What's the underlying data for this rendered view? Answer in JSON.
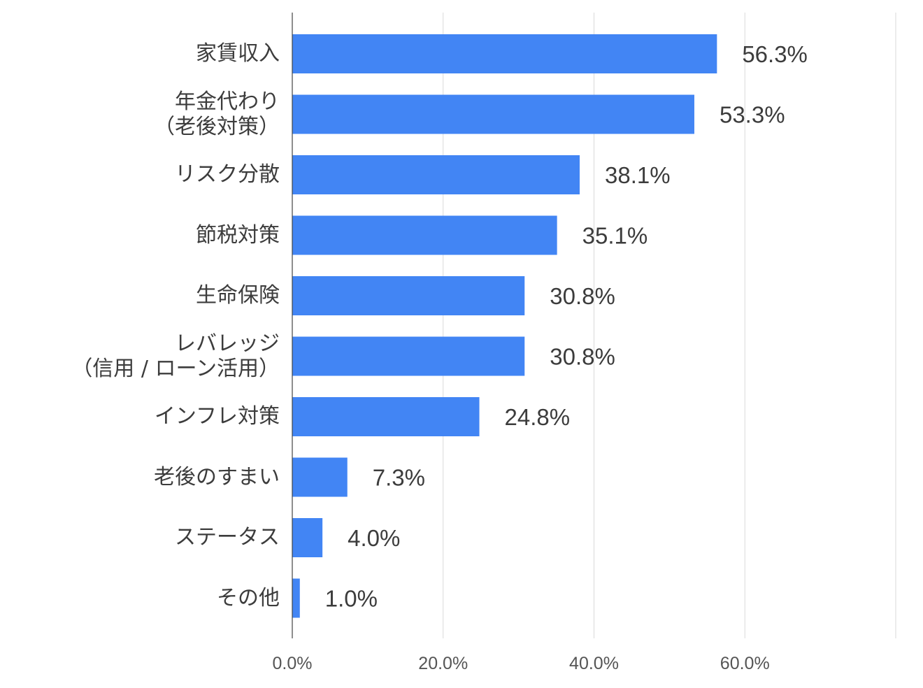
{
  "chart_data": {
    "type": "bar",
    "orientation": "horizontal",
    "categories": [
      "家賃収入",
      "年金代わり\n（老後対策）",
      "リスク分散",
      "節税対策",
      "生命保険",
      "レバレッジ\n（信用 / ローン活用）",
      "インフレ対策",
      "老後のすまい",
      "ステータス",
      "その他"
    ],
    "values": [
      56.3,
      53.3,
      38.1,
      35.1,
      30.8,
      30.8,
      24.8,
      7.3,
      4.0,
      1.0
    ],
    "data_labels": [
      "56.3%",
      "53.3%",
      "38.1%",
      "35.1%",
      "30.8%",
      "30.8%",
      "24.8%",
      "7.3%",
      "4.0%",
      "1.0%"
    ],
    "x_ticks": [
      0,
      20,
      40,
      60,
      80
    ],
    "x_tick_labels": [
      "0.0%",
      "20.0%",
      "40.0%",
      "60.0%",
      ""
    ],
    "xlim": [
      0,
      80
    ],
    "grid": true,
    "bar_color": "#4285f4",
    "title": "",
    "xlabel": "",
    "ylabel": ""
  }
}
